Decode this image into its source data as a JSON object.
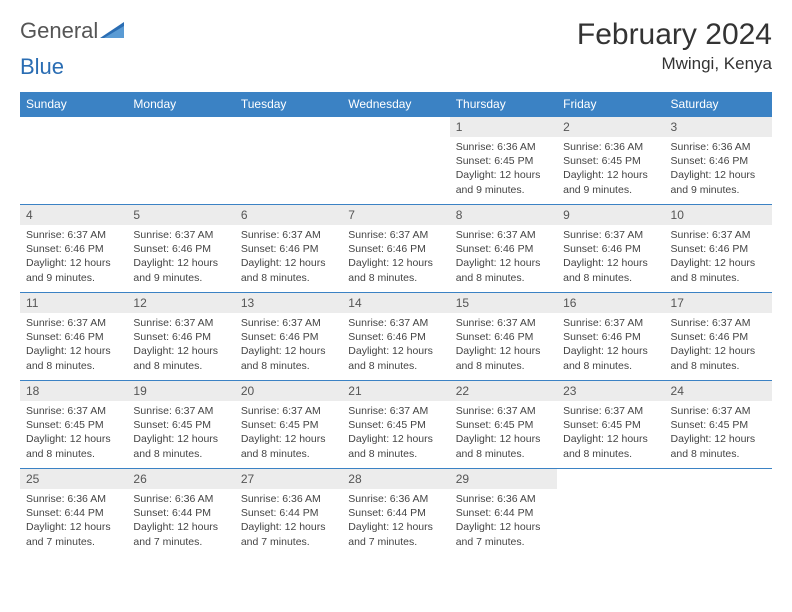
{
  "brand": {
    "part1": "General",
    "part2": "Blue"
  },
  "title": "February 2024",
  "location": "Mwingi, Kenya",
  "colors": {
    "header_bg": "#3b82c4",
    "header_text": "#ffffff",
    "daynum_bg": "#ececec",
    "border": "#3b82c4",
    "brand_blue": "#2a6db3"
  },
  "weekdays": [
    "Sunday",
    "Monday",
    "Tuesday",
    "Wednesday",
    "Thursday",
    "Friday",
    "Saturday"
  ],
  "weeks": [
    [
      null,
      null,
      null,
      null,
      {
        "n": "1",
        "sunrise": "6:36 AM",
        "sunset": "6:45 PM",
        "daylight": "12 hours and 9 minutes."
      },
      {
        "n": "2",
        "sunrise": "6:36 AM",
        "sunset": "6:45 PM",
        "daylight": "12 hours and 9 minutes."
      },
      {
        "n": "3",
        "sunrise": "6:36 AM",
        "sunset": "6:46 PM",
        "daylight": "12 hours and 9 minutes."
      }
    ],
    [
      {
        "n": "4",
        "sunrise": "6:37 AM",
        "sunset": "6:46 PM",
        "daylight": "12 hours and 9 minutes."
      },
      {
        "n": "5",
        "sunrise": "6:37 AM",
        "sunset": "6:46 PM",
        "daylight": "12 hours and 9 minutes."
      },
      {
        "n": "6",
        "sunrise": "6:37 AM",
        "sunset": "6:46 PM",
        "daylight": "12 hours and 8 minutes."
      },
      {
        "n": "7",
        "sunrise": "6:37 AM",
        "sunset": "6:46 PM",
        "daylight": "12 hours and 8 minutes."
      },
      {
        "n": "8",
        "sunrise": "6:37 AM",
        "sunset": "6:46 PM",
        "daylight": "12 hours and 8 minutes."
      },
      {
        "n": "9",
        "sunrise": "6:37 AM",
        "sunset": "6:46 PM",
        "daylight": "12 hours and 8 minutes."
      },
      {
        "n": "10",
        "sunrise": "6:37 AM",
        "sunset": "6:46 PM",
        "daylight": "12 hours and 8 minutes."
      }
    ],
    [
      {
        "n": "11",
        "sunrise": "6:37 AM",
        "sunset": "6:46 PM",
        "daylight": "12 hours and 8 minutes."
      },
      {
        "n": "12",
        "sunrise": "6:37 AM",
        "sunset": "6:46 PM",
        "daylight": "12 hours and 8 minutes."
      },
      {
        "n": "13",
        "sunrise": "6:37 AM",
        "sunset": "6:46 PM",
        "daylight": "12 hours and 8 minutes."
      },
      {
        "n": "14",
        "sunrise": "6:37 AM",
        "sunset": "6:46 PM",
        "daylight": "12 hours and 8 minutes."
      },
      {
        "n": "15",
        "sunrise": "6:37 AM",
        "sunset": "6:46 PM",
        "daylight": "12 hours and 8 minutes."
      },
      {
        "n": "16",
        "sunrise": "6:37 AM",
        "sunset": "6:46 PM",
        "daylight": "12 hours and 8 minutes."
      },
      {
        "n": "17",
        "sunrise": "6:37 AM",
        "sunset": "6:46 PM",
        "daylight": "12 hours and 8 minutes."
      }
    ],
    [
      {
        "n": "18",
        "sunrise": "6:37 AM",
        "sunset": "6:45 PM",
        "daylight": "12 hours and 8 minutes."
      },
      {
        "n": "19",
        "sunrise": "6:37 AM",
        "sunset": "6:45 PM",
        "daylight": "12 hours and 8 minutes."
      },
      {
        "n": "20",
        "sunrise": "6:37 AM",
        "sunset": "6:45 PM",
        "daylight": "12 hours and 8 minutes."
      },
      {
        "n": "21",
        "sunrise": "6:37 AM",
        "sunset": "6:45 PM",
        "daylight": "12 hours and 8 minutes."
      },
      {
        "n": "22",
        "sunrise": "6:37 AM",
        "sunset": "6:45 PM",
        "daylight": "12 hours and 8 minutes."
      },
      {
        "n": "23",
        "sunrise": "6:37 AM",
        "sunset": "6:45 PM",
        "daylight": "12 hours and 8 minutes."
      },
      {
        "n": "24",
        "sunrise": "6:37 AM",
        "sunset": "6:45 PM",
        "daylight": "12 hours and 8 minutes."
      }
    ],
    [
      {
        "n": "25",
        "sunrise": "6:36 AM",
        "sunset": "6:44 PM",
        "daylight": "12 hours and 7 minutes."
      },
      {
        "n": "26",
        "sunrise": "6:36 AM",
        "sunset": "6:44 PM",
        "daylight": "12 hours and 7 minutes."
      },
      {
        "n": "27",
        "sunrise": "6:36 AM",
        "sunset": "6:44 PM",
        "daylight": "12 hours and 7 minutes."
      },
      {
        "n": "28",
        "sunrise": "6:36 AM",
        "sunset": "6:44 PM",
        "daylight": "12 hours and 7 minutes."
      },
      {
        "n": "29",
        "sunrise": "6:36 AM",
        "sunset": "6:44 PM",
        "daylight": "12 hours and 7 minutes."
      },
      null,
      null
    ]
  ],
  "labels": {
    "sunrise": "Sunrise:",
    "sunset": "Sunset:",
    "daylight": "Daylight:"
  }
}
